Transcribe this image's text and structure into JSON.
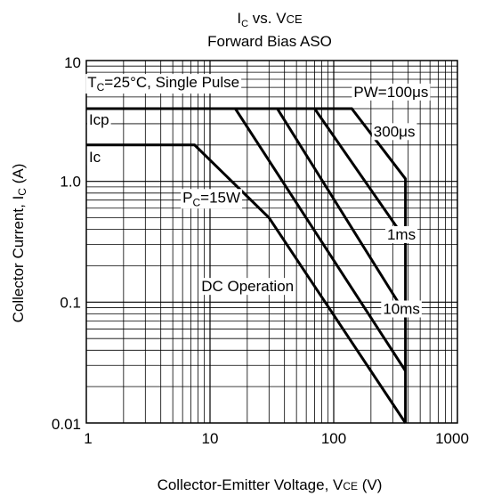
{
  "chart_data": {
    "type": "line",
    "title_line1": {
      "main": "I",
      "sub": "C",
      "rest": " vs. V",
      "sub2": "CE"
    },
    "title_line2": "Forward Bias ASO",
    "xlabel": {
      "main": "Collector-Emitter Voltage,  V",
      "sub": "CE",
      "rest": " (V)"
    },
    "ylabel": {
      "main": "Collector Current,  I",
      "sub": "C",
      "rest": " (A)"
    },
    "x_scale": "log",
    "y_scale": "log",
    "xlim": [
      1,
      1000
    ],
    "ylim": [
      0.01,
      10
    ],
    "grid": true,
    "x_ticks": [
      {
        "value": 1,
        "label": "1"
      },
      {
        "value": 10,
        "label": "10"
      },
      {
        "value": 100,
        "label": "100"
      },
      {
        "value": 1000,
        "label": "1000"
      }
    ],
    "y_ticks": [
      {
        "value": 10,
        "label": "10"
      },
      {
        "value": 1,
        "label": "1.0"
      },
      {
        "value": 0.1,
        "label": "0.1"
      },
      {
        "value": 0.01,
        "label": "0.01"
      }
    ],
    "series": [
      {
        "points": [
          [
            1,
            4
          ],
          [
            140,
            4
          ],
          [
            380,
            1.05
          ],
          [
            380,
            0.01
          ]
        ]
      },
      {
        "points": [
          [
            70,
            4
          ],
          [
            380,
            0.33
          ]
        ]
      },
      {
        "points": [
          [
            35,
            4
          ],
          [
            380,
            0.08
          ]
        ]
      },
      {
        "points": [
          [
            16,
            4
          ],
          [
            380,
            0.027
          ]
        ]
      },
      {
        "points": [
          [
            1,
            2
          ],
          [
            7.5,
            2
          ],
          [
            30,
            0.5
          ],
          [
            380,
            0.01
          ]
        ]
      }
    ],
    "annotations": [
      {
        "id": "conditions",
        "main": "T",
        "sub": "C",
        "rest": "=25°C, Single Pulse",
        "x": 1.02,
        "y": 6.0
      },
      {
        "id": "pw100",
        "text": "PW=100μs",
        "x": 145,
        "y": 5.0
      },
      {
        "id": "pw300",
        "text": "300μs",
        "x": 210,
        "y": 2.35
      },
      {
        "id": "pw1ms",
        "text": "1ms",
        "x": 270,
        "y": 0.33
      },
      {
        "id": "pw10ms",
        "text": "10ms",
        "x": 250,
        "y": 0.08
      },
      {
        "id": "icp",
        "text": "Icp",
        "x": 1.05,
        "y": 2.95
      },
      {
        "id": "ic",
        "text": "Ic",
        "x": 1.05,
        "y": 1.45
      },
      {
        "id": "pc",
        "main": "P",
        "sub": "C",
        "rest": "=15W",
        "x": 6.0,
        "y": 0.67
      },
      {
        "id": "dc",
        "text": "DC Operation",
        "x": 8.5,
        "y": 0.123
      }
    ]
  }
}
